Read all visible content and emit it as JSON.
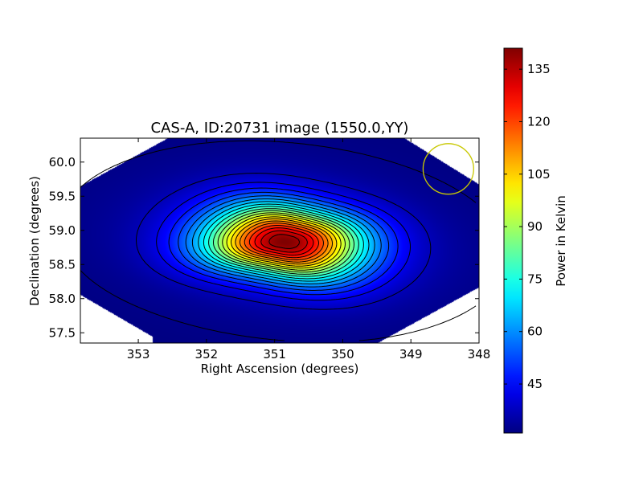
{
  "chart_data": {
    "type": "heatmap",
    "title": "CAS-A, ID:20731 image (1550.0,YY)",
    "xlabel": "Right Ascension (degrees)",
    "ylabel": "Declination (degrees)",
    "xlim": [
      353.85,
      348.0
    ],
    "ylim": [
      57.35,
      60.35
    ],
    "x_inverted": true,
    "x_ticks": [
      353,
      352,
      351,
      350,
      349,
      348
    ],
    "x_tick_labels": [
      "353",
      "352",
      "351",
      "350",
      "349",
      "348"
    ],
    "y_ticks": [
      57.5,
      58.0,
      58.5,
      59.0,
      59.5,
      60.0
    ],
    "y_tick_labels": [
      "57.5",
      "58.0",
      "58.5",
      "59.0",
      "59.5",
      "60.0"
    ],
    "colorscale": "jet",
    "source_peak": {
      "ra": 350.85,
      "dec": 58.83,
      "value": 141
    },
    "background_level": 31,
    "contour_levels": [
      32,
      37,
      42,
      47,
      52,
      57,
      62,
      67,
      72,
      77,
      82,
      87,
      92,
      97,
      102,
      107,
      112,
      117,
      122,
      127,
      132,
      137
    ],
    "beam_circle": {
      "ra": 348.45,
      "dec": 59.9,
      "radius_deg": 0.37,
      "color": "#c8c800"
    },
    "grid": false,
    "colorbar": {
      "label": "Power in Kelvin",
      "min": 31,
      "max": 141,
      "ticks": [
        45,
        60,
        75,
        90,
        105,
        120,
        135
      ],
      "tick_labels": [
        "45",
        "60",
        "75",
        "90",
        "105",
        "120",
        "135"
      ],
      "placement": "right"
    }
  }
}
